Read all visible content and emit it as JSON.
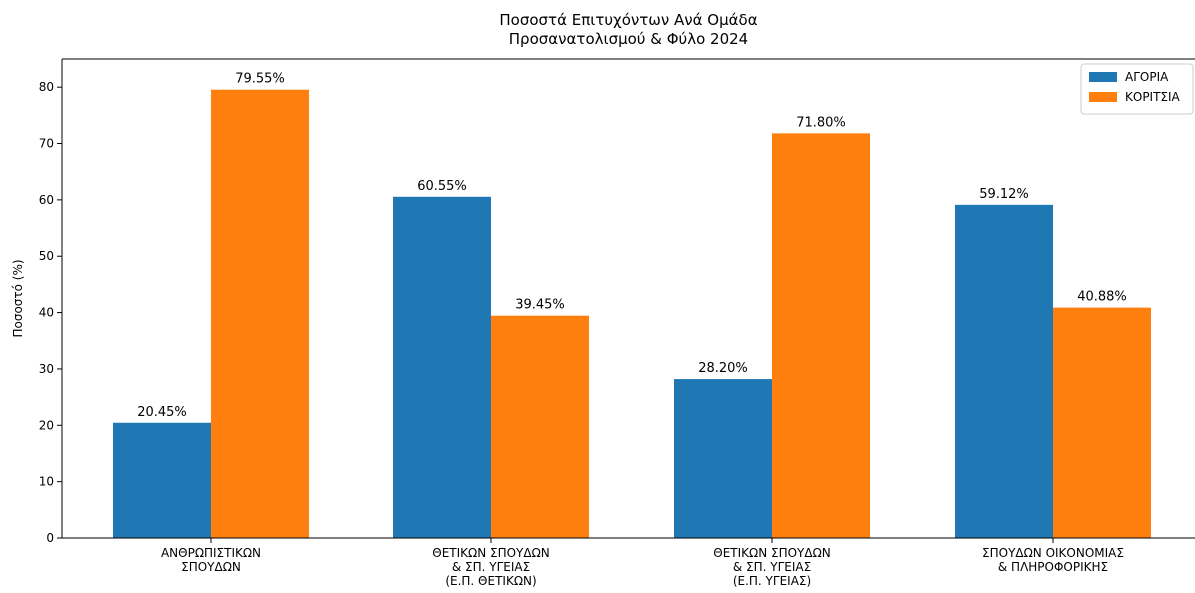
{
  "chart_data": {
    "type": "bar",
    "title_lines": [
      "Ποσοστά Επιτυχόντων Ανά Ομάδα",
      "Προσανατολισμού & Φύλο 2024"
    ],
    "xlabel": "",
    "ylabel": "Ποσοστό (%)",
    "ylim": [
      0,
      85
    ],
    "yticks": [
      0,
      10,
      20,
      30,
      40,
      50,
      60,
      70,
      80
    ],
    "grid": false,
    "legend_position": "top-right",
    "categories": [
      [
        "ΑΝΘΡΩΠΙΣΤΙΚΩΝ",
        "ΣΠΟΥΔΩΝ"
      ],
      [
        "ΘΕΤΙΚΩΝ ΣΠΟΥΔΩΝ",
        "& ΣΠ. ΥΓΕΙΑΣ",
        "(Ε.Π. ΘΕΤΙΚΩΝ)"
      ],
      [
        "ΘΕΤΙΚΩΝ ΣΠΟΥΔΩΝ",
        "& ΣΠ. ΥΓΕΙΑΣ",
        "(Ε.Π. ΥΓΕΙΑΣ)"
      ],
      [
        "ΣΠΟΥΔΩΝ ΟΙΚΟΝΟΜΙΑΣ",
        "& ΠΛΗΡΟΦΟΡΙΚΗΣ"
      ]
    ],
    "series": [
      {
        "name": "ΑΓΟΡΙΑ",
        "color": "#1f77b4",
        "values": [
          20.45,
          60.55,
          28.2,
          59.12
        ],
        "labels": [
          "20.45%",
          "60.55%",
          "28.20%",
          "59.12%"
        ]
      },
      {
        "name": "ΚΟΡΙΤΣΙΑ",
        "color": "#ff7f0e",
        "values": [
          79.55,
          39.45,
          71.8,
          40.88
        ],
        "labels": [
          "79.55%",
          "39.45%",
          "71.80%",
          "40.88%"
        ]
      }
    ]
  }
}
